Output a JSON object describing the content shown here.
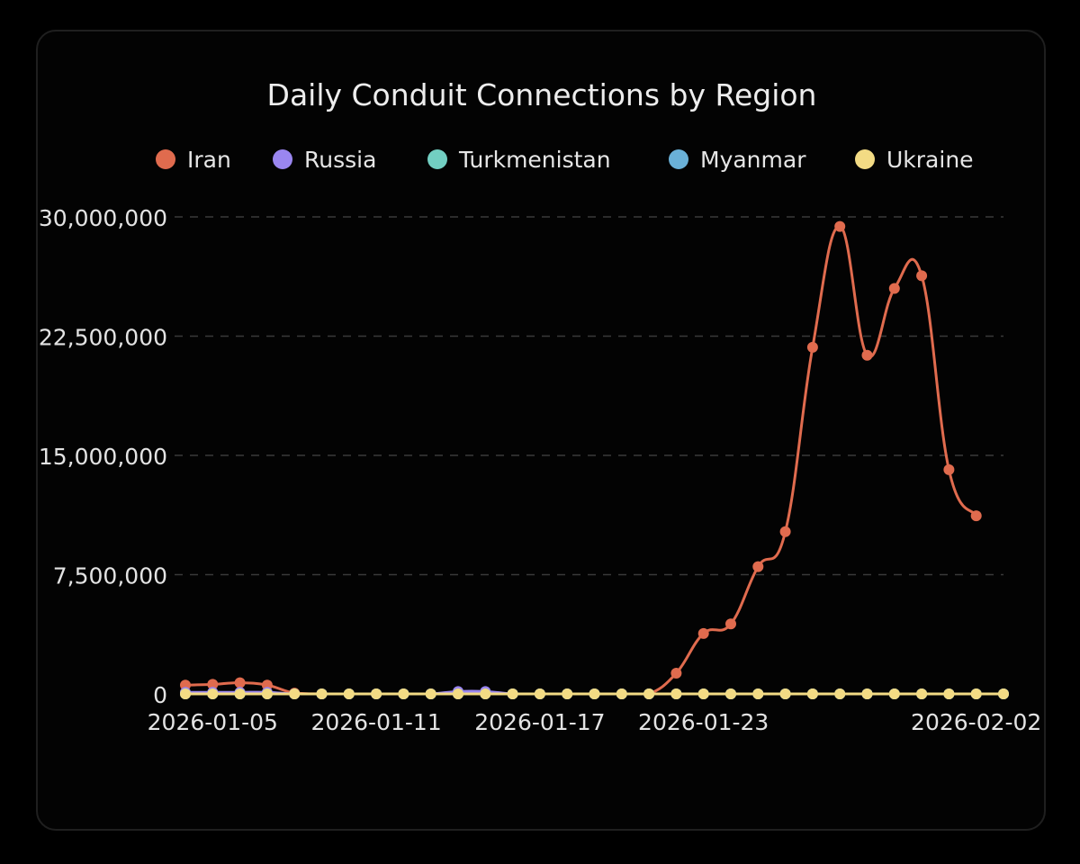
{
  "chart_data": {
    "type": "line",
    "title": "Daily Conduit Connections by Region",
    "legend_position": "top-center",
    "grid": {
      "horizontal": true,
      "vertical": false,
      "style": "dashed"
    },
    "xlabel": "",
    "ylabel": "",
    "ylim": [
      0,
      30000000
    ],
    "yticks": [
      {
        "value": 0,
        "label": "0"
      },
      {
        "value": 7500000,
        "label": "7,500,000"
      },
      {
        "value": 15000000,
        "label": "15,000,000"
      },
      {
        "value": 22500000,
        "label": "22,500,000"
      },
      {
        "value": 30000000,
        "label": "30,000,000"
      }
    ],
    "xtick_labels": [
      {
        "date": "2026-01-05",
        "label": "2026-01-05"
      },
      {
        "date": "2026-01-11",
        "label": "2026-01-11"
      },
      {
        "date": "2026-01-17",
        "label": "2026-01-17"
      },
      {
        "date": "2026-01-23",
        "label": "2026-01-23"
      },
      {
        "date": "2026-02-02",
        "label": "2026-02-02"
      }
    ],
    "x": [
      "2026-01-04",
      "2026-01-05",
      "2026-01-06",
      "2026-01-07",
      "2026-01-08",
      "2026-01-09",
      "2026-01-10",
      "2026-01-11",
      "2026-01-12",
      "2026-01-13",
      "2026-01-14",
      "2026-01-15",
      "2026-01-16",
      "2026-01-17",
      "2026-01-18",
      "2026-01-19",
      "2026-01-20",
      "2026-01-21",
      "2026-01-22",
      "2026-01-23",
      "2026-01-24",
      "2026-01-25",
      "2026-01-26",
      "2026-01-27",
      "2026-01-28",
      "2026-01-29",
      "2026-01-30",
      "2026-01-31",
      "2026-02-01",
      "2026-02-02",
      "2026-02-03"
    ],
    "series": [
      {
        "name": "Iran",
        "color": "#e06b4e",
        "values": [
          550000,
          600000,
          700000,
          550000,
          50000,
          0,
          0,
          0,
          0,
          0,
          0,
          0,
          0,
          0,
          0,
          0,
          0,
          0,
          1300000,
          3800000,
          4400000,
          8000000,
          10200000,
          21800000,
          29400000,
          21300000,
          25500000,
          26300000,
          14100000,
          11200000,
          null
        ]
      },
      {
        "name": "Russia",
        "color": "#9a86f0",
        "values": [
          100000,
          100000,
          100000,
          100000,
          0,
          0,
          0,
          0,
          0,
          0,
          150000,
          150000,
          0,
          0,
          0,
          0,
          0,
          0,
          0,
          0,
          0,
          0,
          0,
          0,
          0,
          0,
          0,
          0,
          0,
          0,
          0
        ]
      },
      {
        "name": "Turkmenistan",
        "color": "#72cfc2",
        "values": [
          0,
          0,
          0,
          0,
          0,
          0,
          0,
          0,
          0,
          0,
          0,
          0,
          0,
          0,
          0,
          0,
          0,
          0,
          0,
          0,
          0,
          0,
          0,
          0,
          0,
          0,
          0,
          0,
          0,
          0,
          0
        ]
      },
      {
        "name": "Myanmar",
        "color": "#6ab1d8",
        "values": [
          0,
          0,
          0,
          0,
          0,
          0,
          0,
          0,
          0,
          0,
          0,
          0,
          0,
          0,
          0,
          0,
          0,
          0,
          0,
          0,
          0,
          0,
          0,
          0,
          0,
          0,
          0,
          0,
          0,
          0,
          0
        ]
      },
      {
        "name": "Ukraine",
        "color": "#f3db84",
        "values": [
          0,
          0,
          0,
          0,
          0,
          0,
          0,
          0,
          0,
          0,
          0,
          0,
          0,
          0,
          0,
          0,
          0,
          0,
          0,
          0,
          0,
          0,
          0,
          0,
          0,
          0,
          0,
          0,
          0,
          0,
          0
        ]
      }
    ]
  },
  "colors": {
    "background": "#000000",
    "card": "#030303",
    "grid": "#3a3a3a",
    "text": "#e8e8e8"
  }
}
